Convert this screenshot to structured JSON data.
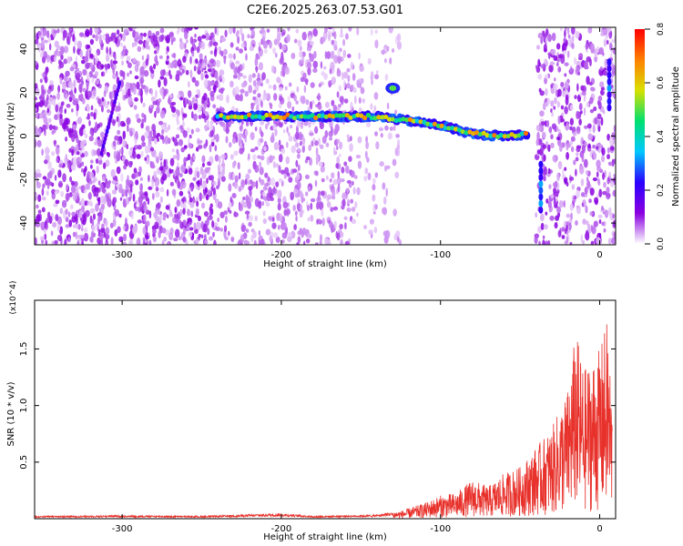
{
  "title": "C2E6.2025.263.07.53.G01",
  "chart_data": [
    {
      "type": "heatmap",
      "xlabel": "Height of straight line (km)",
      "ylabel": "Frequency (Hz)",
      "xlim": [
        -355,
        10
      ],
      "ylim": [
        -50,
        50
      ],
      "x_ticks": [
        -300,
        -200,
        -100,
        0
      ],
      "y_ticks": [
        -40,
        -20,
        0,
        20,
        40
      ],
      "colorbar": {
        "label": "Normalized spectral amplitude",
        "range": [
          0,
          0.8
        ],
        "ticks": [
          0,
          0.2,
          0.4,
          0.6,
          0.8
        ],
        "colors": [
          "#ffffff",
          "#8a00e0",
          "#2b00ff",
          "#00c8ff",
          "#00e070",
          "#d8e000",
          "#ff8000",
          "#ff0000"
        ]
      },
      "ridge": [
        {
          "x": -240,
          "y": 9
        },
        {
          "x": -200,
          "y": 9
        },
        {
          "x": -160,
          "y": 9
        },
        {
          "x": -140,
          "y": 9
        },
        {
          "x": -120,
          "y": 7
        },
        {
          "x": -100,
          "y": 5
        },
        {
          "x": -80,
          "y": 1
        },
        {
          "x": -60,
          "y": 0
        },
        {
          "x": -45,
          "y": 1
        }
      ],
      "features": [
        {
          "x": -130,
          "y": 22,
          "label": "tone near 22 Hz"
        },
        {
          "x": -313,
          "y": -8,
          "label": "diagonal streak"
        },
        {
          "x": -37,
          "y": -22,
          "label": "vertical streak"
        },
        {
          "x": 6,
          "y": 25,
          "label": "vertical streak"
        }
      ],
      "grid": false
    },
    {
      "type": "line",
      "xlabel": "Height of straight line (km)",
      "ylabel": "SNR (10 * v/v)",
      "y_multiplier": "(x10^4)",
      "xlim": [
        -355,
        10
      ],
      "ylim": [
        0,
        1.93
      ],
      "x_ticks": [
        -300,
        -200,
        -100,
        0
      ],
      "y_ticks": [
        0.5,
        1.0,
        1.5
      ],
      "series": [
        {
          "color": "#e8312b",
          "x": [
            -355,
            -300,
            -250,
            -200,
            -180,
            -140,
            -125,
            -110,
            -100,
            -90,
            -80,
            -70,
            -60,
            -50,
            -40,
            -30,
            -20,
            -15,
            -10,
            0,
            5,
            8
          ],
          "y": [
            0.02,
            0.025,
            0.02,
            0.04,
            0.02,
            0.03,
            0.06,
            0.12,
            0.18,
            0.2,
            0.3,
            0.25,
            0.35,
            0.4,
            0.55,
            0.7,
            1.0,
            1.45,
            1.15,
            1.3,
            1.55,
            0.85
          ]
        }
      ]
    }
  ]
}
